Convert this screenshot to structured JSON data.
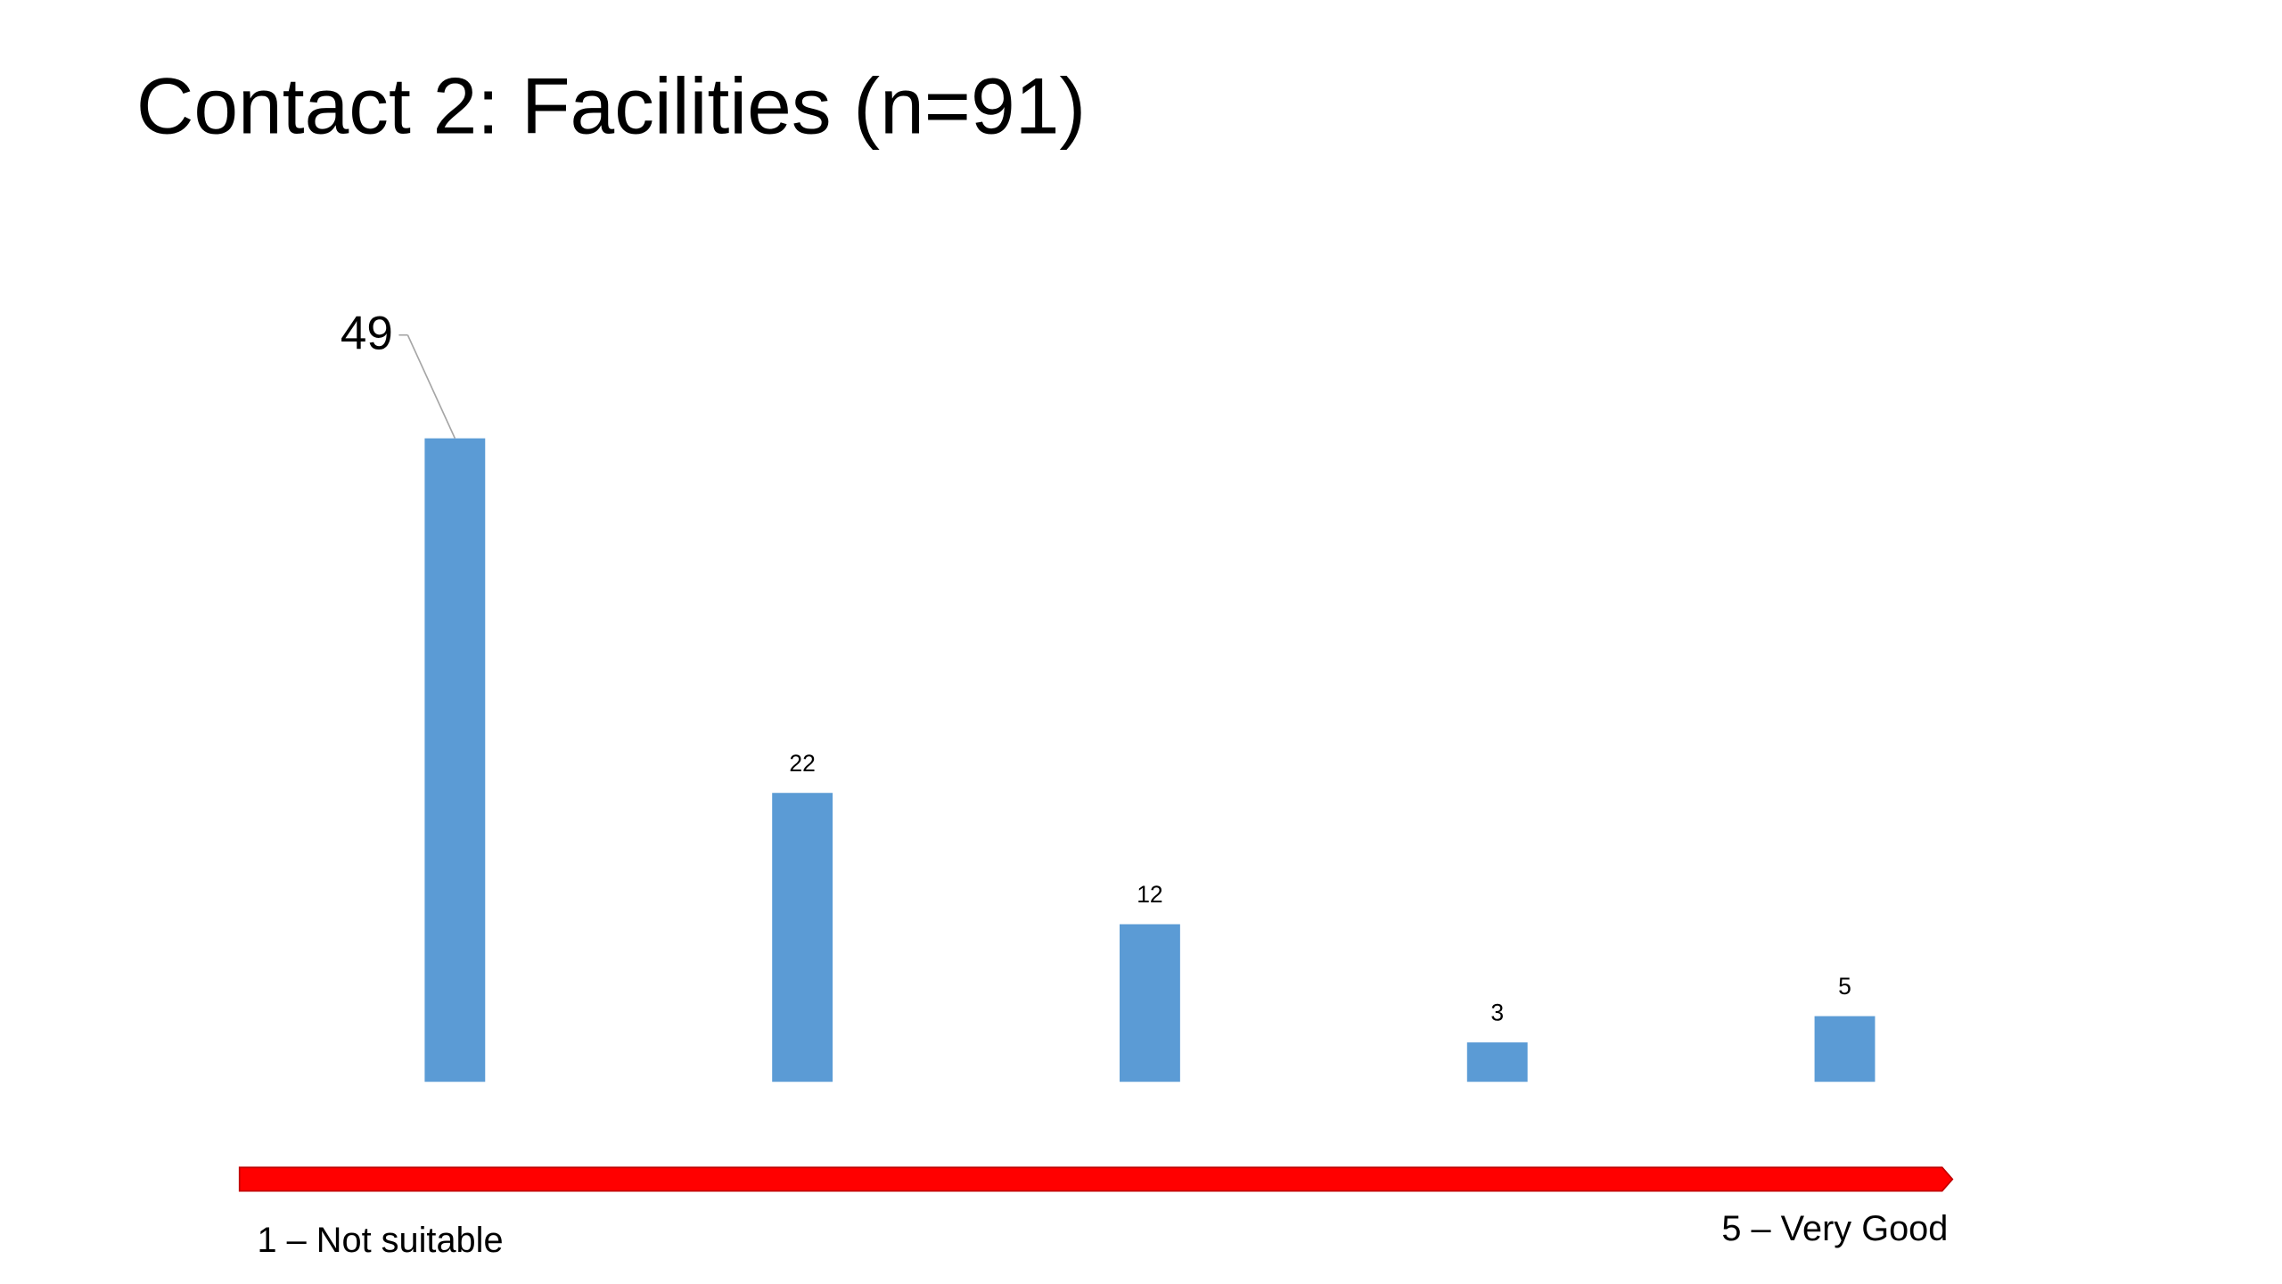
{
  "chart_data": {
    "type": "bar",
    "title": "Contact 2: Facilities (n=91)",
    "categories": [
      null,
      null,
      null,
      null,
      null
    ],
    "values": [
      49,
      22,
      12,
      3,
      5
    ],
    "color": "#5b9bd5",
    "x_start_label": "1 – Not suitable",
    "x_end_label": "5 – Very Good"
  }
}
